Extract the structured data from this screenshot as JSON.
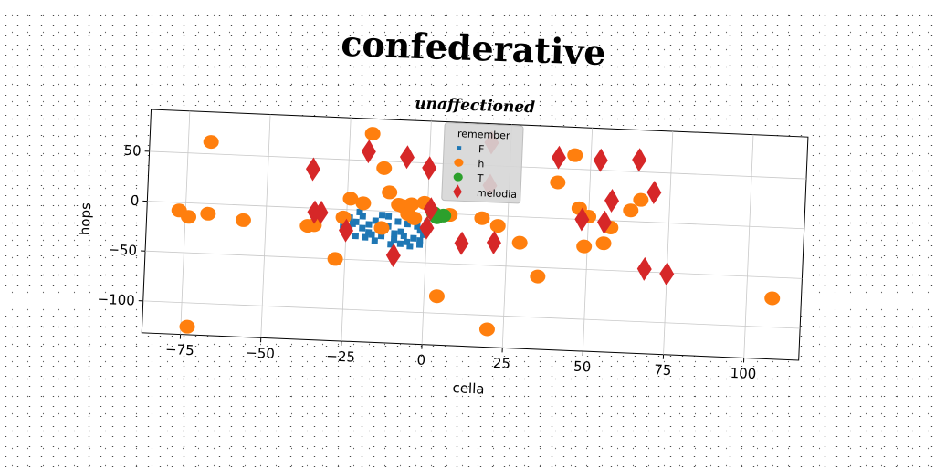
{
  "chart_data": {
    "type": "scatter",
    "title": "confederative",
    "subtitle": "unaffectioned",
    "xlabel": "cella",
    "ylabel": "hops",
    "xlim": [
      -87,
      117
    ],
    "ylim": [
      -132,
      92
    ],
    "xticks": [
      -75,
      -50,
      -25,
      0,
      25,
      50,
      75,
      100
    ],
    "yticks": [
      50,
      0,
      -50,
      -100
    ],
    "xtick_labels": [
      "−75",
      "−50",
      "−25",
      "0",
      "25",
      "50",
      "75",
      "100"
    ],
    "ytick_labels": [
      "50",
      "0",
      "−50",
      "−100"
    ],
    "grid": true,
    "legend": {
      "title": "remember",
      "placement": "top-center"
    },
    "series": [
      {
        "name": "F",
        "marker": "square",
        "color": "#1f77b4",
        "points": [
          [
            -26,
            -5
          ],
          [
            -24,
            -8
          ],
          [
            -22,
            -12
          ],
          [
            -20,
            -18
          ],
          [
            -18,
            -22
          ],
          [
            -16,
            -10
          ],
          [
            -14,
            -25
          ],
          [
            -12,
            -15
          ],
          [
            -10,
            -28
          ],
          [
            -8,
            -20
          ],
          [
            -6,
            -12
          ],
          [
            -4,
            -26
          ],
          [
            -2,
            -18
          ],
          [
            -24,
            -20
          ],
          [
            -20,
            -6
          ],
          [
            -16,
            -30
          ],
          [
            -12,
            -5
          ],
          [
            -8,
            -32
          ],
          [
            -4,
            -8
          ],
          [
            -2,
            -28
          ],
          [
            -22,
            -26
          ],
          [
            -18,
            -14
          ],
          [
            -14,
            -4
          ],
          [
            -10,
            -22
          ],
          [
            -6,
            -30
          ],
          [
            -26,
            -16
          ],
          [
            -19,
            -27
          ],
          [
            -13,
            -19
          ],
          [
            -7,
            -24
          ],
          [
            -3,
            -14
          ],
          [
            -1,
            -22
          ],
          [
            -21,
            -2
          ],
          [
            -15,
            -16
          ],
          [
            -9,
            -10
          ],
          [
            -5,
            -34
          ],
          [
            -11,
            -33
          ],
          [
            -17,
            -24
          ],
          [
            -23,
            -14
          ],
          [
            0,
            -10
          ],
          [
            -2,
            -32
          ]
        ]
      },
      {
        "name": "h",
        "marker": "circle",
        "color": "#ff7f0e",
        "points": [
          [
            -68,
            62
          ],
          [
            -77,
            -8
          ],
          [
            -74,
            -14
          ],
          [
            -68,
            -10
          ],
          [
            -57,
            -15
          ],
          [
            -73,
            -124
          ],
          [
            -37,
            -18
          ],
          [
            -35,
            -17
          ],
          [
            -28,
            -50
          ],
          [
            -26,
            -8
          ],
          [
            -24,
            11
          ],
          [
            -20,
            7
          ],
          [
            -18,
            77
          ],
          [
            -14,
            43
          ],
          [
            -12,
            19
          ],
          [
            -9,
            7
          ],
          [
            -8,
            6
          ],
          [
            -6,
            -2
          ],
          [
            -4,
            -6
          ],
          [
            -5,
            8
          ],
          [
            -14,
            -17
          ],
          [
            -1,
            10
          ],
          [
            4,
            -83
          ],
          [
            7,
            -1
          ],
          [
            17,
            -3
          ],
          [
            20,
            -114
          ],
          [
            22,
            -10
          ],
          [
            29,
            -26
          ],
          [
            35,
            -59
          ],
          [
            40,
            36
          ],
          [
            45,
            64
          ],
          [
            47,
            11
          ],
          [
            50,
            3
          ],
          [
            49,
            -27
          ],
          [
            55,
            -23
          ],
          [
            57,
            -7
          ],
          [
            63,
            11
          ],
          [
            66,
            22
          ],
          [
            108,
            -71
          ]
        ]
      },
      {
        "name": "T",
        "marker": "circle",
        "color": "#2ca02c",
        "points": [
          [
            2,
            0
          ],
          [
            3,
            -4
          ],
          [
            5,
            -2
          ]
        ]
      },
      {
        "name": "melodia",
        "marker": "diamond",
        "color": "#d62728",
        "points": [
          [
            -36,
            39
          ],
          [
            -35,
            -4
          ],
          [
            -33,
            -4
          ],
          [
            -25,
            -21
          ],
          [
            -19,
            59
          ],
          [
            -10,
            -44
          ],
          [
            -7,
            55
          ],
          [
            0,
            45
          ],
          [
            0,
            -15
          ],
          [
            1,
            4
          ],
          [
            11,
            -29
          ],
          [
            19,
            73
          ],
          [
            21,
            -27
          ],
          [
            19,
            30
          ],
          [
            40,
            61
          ],
          [
            48,
            0
          ],
          [
            53,
            60
          ],
          [
            55,
            -2
          ],
          [
            57,
            20
          ],
          [
            65,
            62
          ],
          [
            68,
            -47
          ],
          [
            70,
            30
          ],
          [
            75,
            -51
          ]
        ]
      }
    ]
  }
}
